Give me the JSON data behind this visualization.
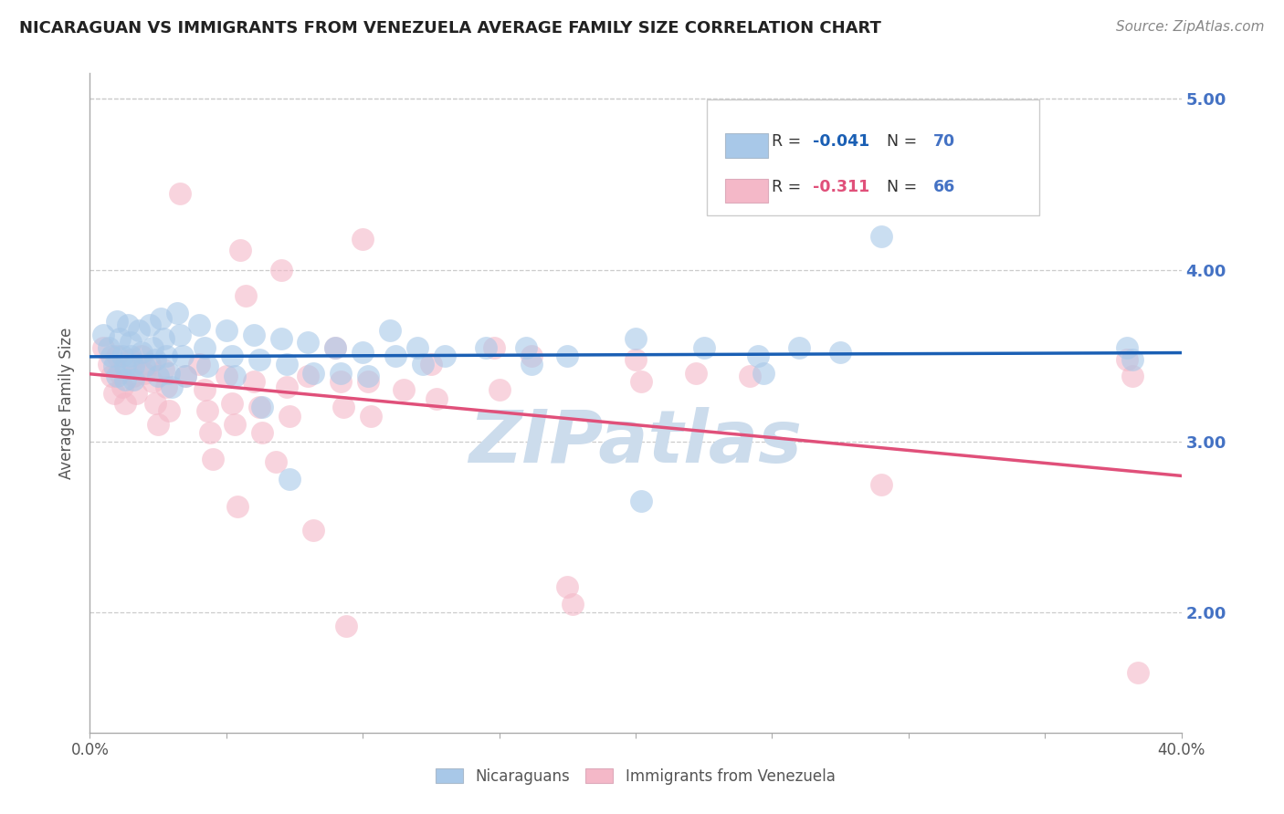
{
  "title": "NICARAGUAN VS IMMIGRANTS FROM VENEZUELA AVERAGE FAMILY SIZE CORRELATION CHART",
  "source": "Source: ZipAtlas.com",
  "ylabel": "Average Family Size",
  "right_yticks": [
    2.0,
    3.0,
    4.0,
    5.0
  ],
  "watermark": "ZIPatlas",
  "legend_labels_bottom": [
    "Nicaraguans",
    "Immigrants from Venezuela"
  ],
  "blue_scatter": [
    [
      0.005,
      3.62
    ],
    [
      0.007,
      3.55
    ],
    [
      0.008,
      3.5
    ],
    [
      0.009,
      3.44
    ],
    [
      0.01,
      3.38
    ],
    [
      0.01,
      3.7
    ],
    [
      0.011,
      3.6
    ],
    [
      0.012,
      3.5
    ],
    [
      0.013,
      3.44
    ],
    [
      0.013,
      3.36
    ],
    [
      0.014,
      3.68
    ],
    [
      0.015,
      3.58
    ],
    [
      0.015,
      3.5
    ],
    [
      0.016,
      3.44
    ],
    [
      0.016,
      3.36
    ],
    [
      0.018,
      3.65
    ],
    [
      0.019,
      3.52
    ],
    [
      0.02,
      3.44
    ],
    [
      0.022,
      3.68
    ],
    [
      0.023,
      3.55
    ],
    [
      0.024,
      3.48
    ],
    [
      0.025,
      3.38
    ],
    [
      0.026,
      3.72
    ],
    [
      0.027,
      3.6
    ],
    [
      0.028,
      3.5
    ],
    [
      0.029,
      3.4
    ],
    [
      0.03,
      3.32
    ],
    [
      0.032,
      3.75
    ],
    [
      0.033,
      3.62
    ],
    [
      0.034,
      3.5
    ],
    [
      0.035,
      3.38
    ],
    [
      0.04,
      3.68
    ],
    [
      0.042,
      3.55
    ],
    [
      0.043,
      3.44
    ],
    [
      0.05,
      3.65
    ],
    [
      0.052,
      3.5
    ],
    [
      0.053,
      3.38
    ],
    [
      0.06,
      3.62
    ],
    [
      0.062,
      3.48
    ],
    [
      0.063,
      3.2
    ],
    [
      0.07,
      3.6
    ],
    [
      0.072,
      3.45
    ],
    [
      0.073,
      2.78
    ],
    [
      0.08,
      3.58
    ],
    [
      0.082,
      3.4
    ],
    [
      0.09,
      3.55
    ],
    [
      0.092,
      3.4
    ],
    [
      0.1,
      3.52
    ],
    [
      0.102,
      3.38
    ],
    [
      0.11,
      3.65
    ],
    [
      0.112,
      3.5
    ],
    [
      0.12,
      3.55
    ],
    [
      0.122,
      3.45
    ],
    [
      0.13,
      3.5
    ],
    [
      0.145,
      3.55
    ],
    [
      0.16,
      3.55
    ],
    [
      0.162,
      3.45
    ],
    [
      0.175,
      3.5
    ],
    [
      0.2,
      3.6
    ],
    [
      0.202,
      2.65
    ],
    [
      0.225,
      3.55
    ],
    [
      0.245,
      3.5
    ],
    [
      0.247,
      3.4
    ],
    [
      0.26,
      3.55
    ],
    [
      0.275,
      3.52
    ],
    [
      0.29,
      4.2
    ],
    [
      0.38,
      3.55
    ],
    [
      0.382,
      3.48
    ]
  ],
  "pink_scatter": [
    [
      0.005,
      3.55
    ],
    [
      0.007,
      3.45
    ],
    [
      0.008,
      3.38
    ],
    [
      0.009,
      3.28
    ],
    [
      0.01,
      3.5
    ],
    [
      0.011,
      3.4
    ],
    [
      0.012,
      3.32
    ],
    [
      0.013,
      3.22
    ],
    [
      0.015,
      3.48
    ],
    [
      0.016,
      3.38
    ],
    [
      0.017,
      3.28
    ],
    [
      0.019,
      3.5
    ],
    [
      0.02,
      3.4
    ],
    [
      0.022,
      3.45
    ],
    [
      0.023,
      3.35
    ],
    [
      0.024,
      3.22
    ],
    [
      0.025,
      3.1
    ],
    [
      0.027,
      3.42
    ],
    [
      0.028,
      3.32
    ],
    [
      0.029,
      3.18
    ],
    [
      0.033,
      4.45
    ],
    [
      0.035,
      3.38
    ],
    [
      0.04,
      3.45
    ],
    [
      0.042,
      3.3
    ],
    [
      0.043,
      3.18
    ],
    [
      0.044,
      3.05
    ],
    [
      0.045,
      2.9
    ],
    [
      0.05,
      3.38
    ],
    [
      0.052,
      3.22
    ],
    [
      0.053,
      3.1
    ],
    [
      0.054,
      2.62
    ],
    [
      0.055,
      4.12
    ],
    [
      0.057,
      3.85
    ],
    [
      0.06,
      3.35
    ],
    [
      0.062,
      3.2
    ],
    [
      0.063,
      3.05
    ],
    [
      0.068,
      2.88
    ],
    [
      0.07,
      4.0
    ],
    [
      0.072,
      3.32
    ],
    [
      0.073,
      3.15
    ],
    [
      0.08,
      3.38
    ],
    [
      0.082,
      2.48
    ],
    [
      0.09,
      3.55
    ],
    [
      0.092,
      3.35
    ],
    [
      0.093,
      3.2
    ],
    [
      0.094,
      1.92
    ],
    [
      0.1,
      4.18
    ],
    [
      0.102,
      3.35
    ],
    [
      0.103,
      3.15
    ],
    [
      0.115,
      3.3
    ],
    [
      0.125,
      3.45
    ],
    [
      0.127,
      3.25
    ],
    [
      0.148,
      3.55
    ],
    [
      0.15,
      3.3
    ],
    [
      0.162,
      3.5
    ],
    [
      0.175,
      2.15
    ],
    [
      0.177,
      2.05
    ],
    [
      0.2,
      3.48
    ],
    [
      0.202,
      3.35
    ],
    [
      0.222,
      3.4
    ],
    [
      0.242,
      3.38
    ],
    [
      0.29,
      2.75
    ],
    [
      0.38,
      3.48
    ],
    [
      0.382,
      3.38
    ],
    [
      0.384,
      1.65
    ]
  ],
  "blue_line_color": "#1a5fb4",
  "pink_line_color": "#e0507a",
  "blue_dot_color": "#a8c8e8",
  "pink_dot_color": "#f4b8c8",
  "bg_color": "#ffffff",
  "grid_color": "#cccccc",
  "right_axis_color": "#4472c4",
  "title_color": "#222222",
  "source_color": "#888888",
  "watermark_color": "#ccdcec",
  "xmin": 0.0,
  "xmax": 0.4,
  "ymin": 1.3,
  "ymax": 5.15
}
